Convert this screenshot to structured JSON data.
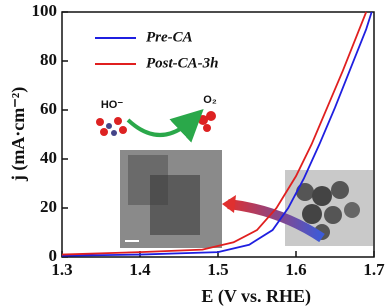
{
  "chart_data": {
    "type": "line",
    "xlabel": "E (V vs. RHE)",
    "ylabel": "j (mA·cm⁻²)",
    "xlim": [
      1.3,
      1.7
    ],
    "xticks": [
      1.3,
      1.4,
      1.5,
      1.6,
      1.7
    ],
    "ylim": [
      0,
      100
    ],
    "yticks": [
      0,
      20,
      40,
      60,
      80,
      100
    ],
    "legend": "upper left",
    "annotations": [
      "HO⁻",
      "O₂"
    ],
    "series": [
      {
        "name": "Pre-CA",
        "color": "#1f1fe0",
        "x": [
          1.3,
          1.4,
          1.5,
          1.54,
          1.57,
          1.59,
          1.61,
          1.63,
          1.65,
          1.67,
          1.69,
          1.697
        ],
        "values": [
          0.5,
          1,
          2,
          5,
          11,
          20,
          32,
          46,
          61,
          77,
          93,
          100
        ]
      },
      {
        "name": "Post-CA-3h",
        "color": "#e01f1f",
        "x": [
          1.3,
          1.4,
          1.48,
          1.52,
          1.55,
          1.575,
          1.6,
          1.62,
          1.64,
          1.66,
          1.68,
          1.69
        ],
        "values": [
          1,
          2,
          3,
          6,
          11,
          20,
          33,
          46,
          61,
          76,
          92,
          100
        ]
      }
    ]
  }
}
